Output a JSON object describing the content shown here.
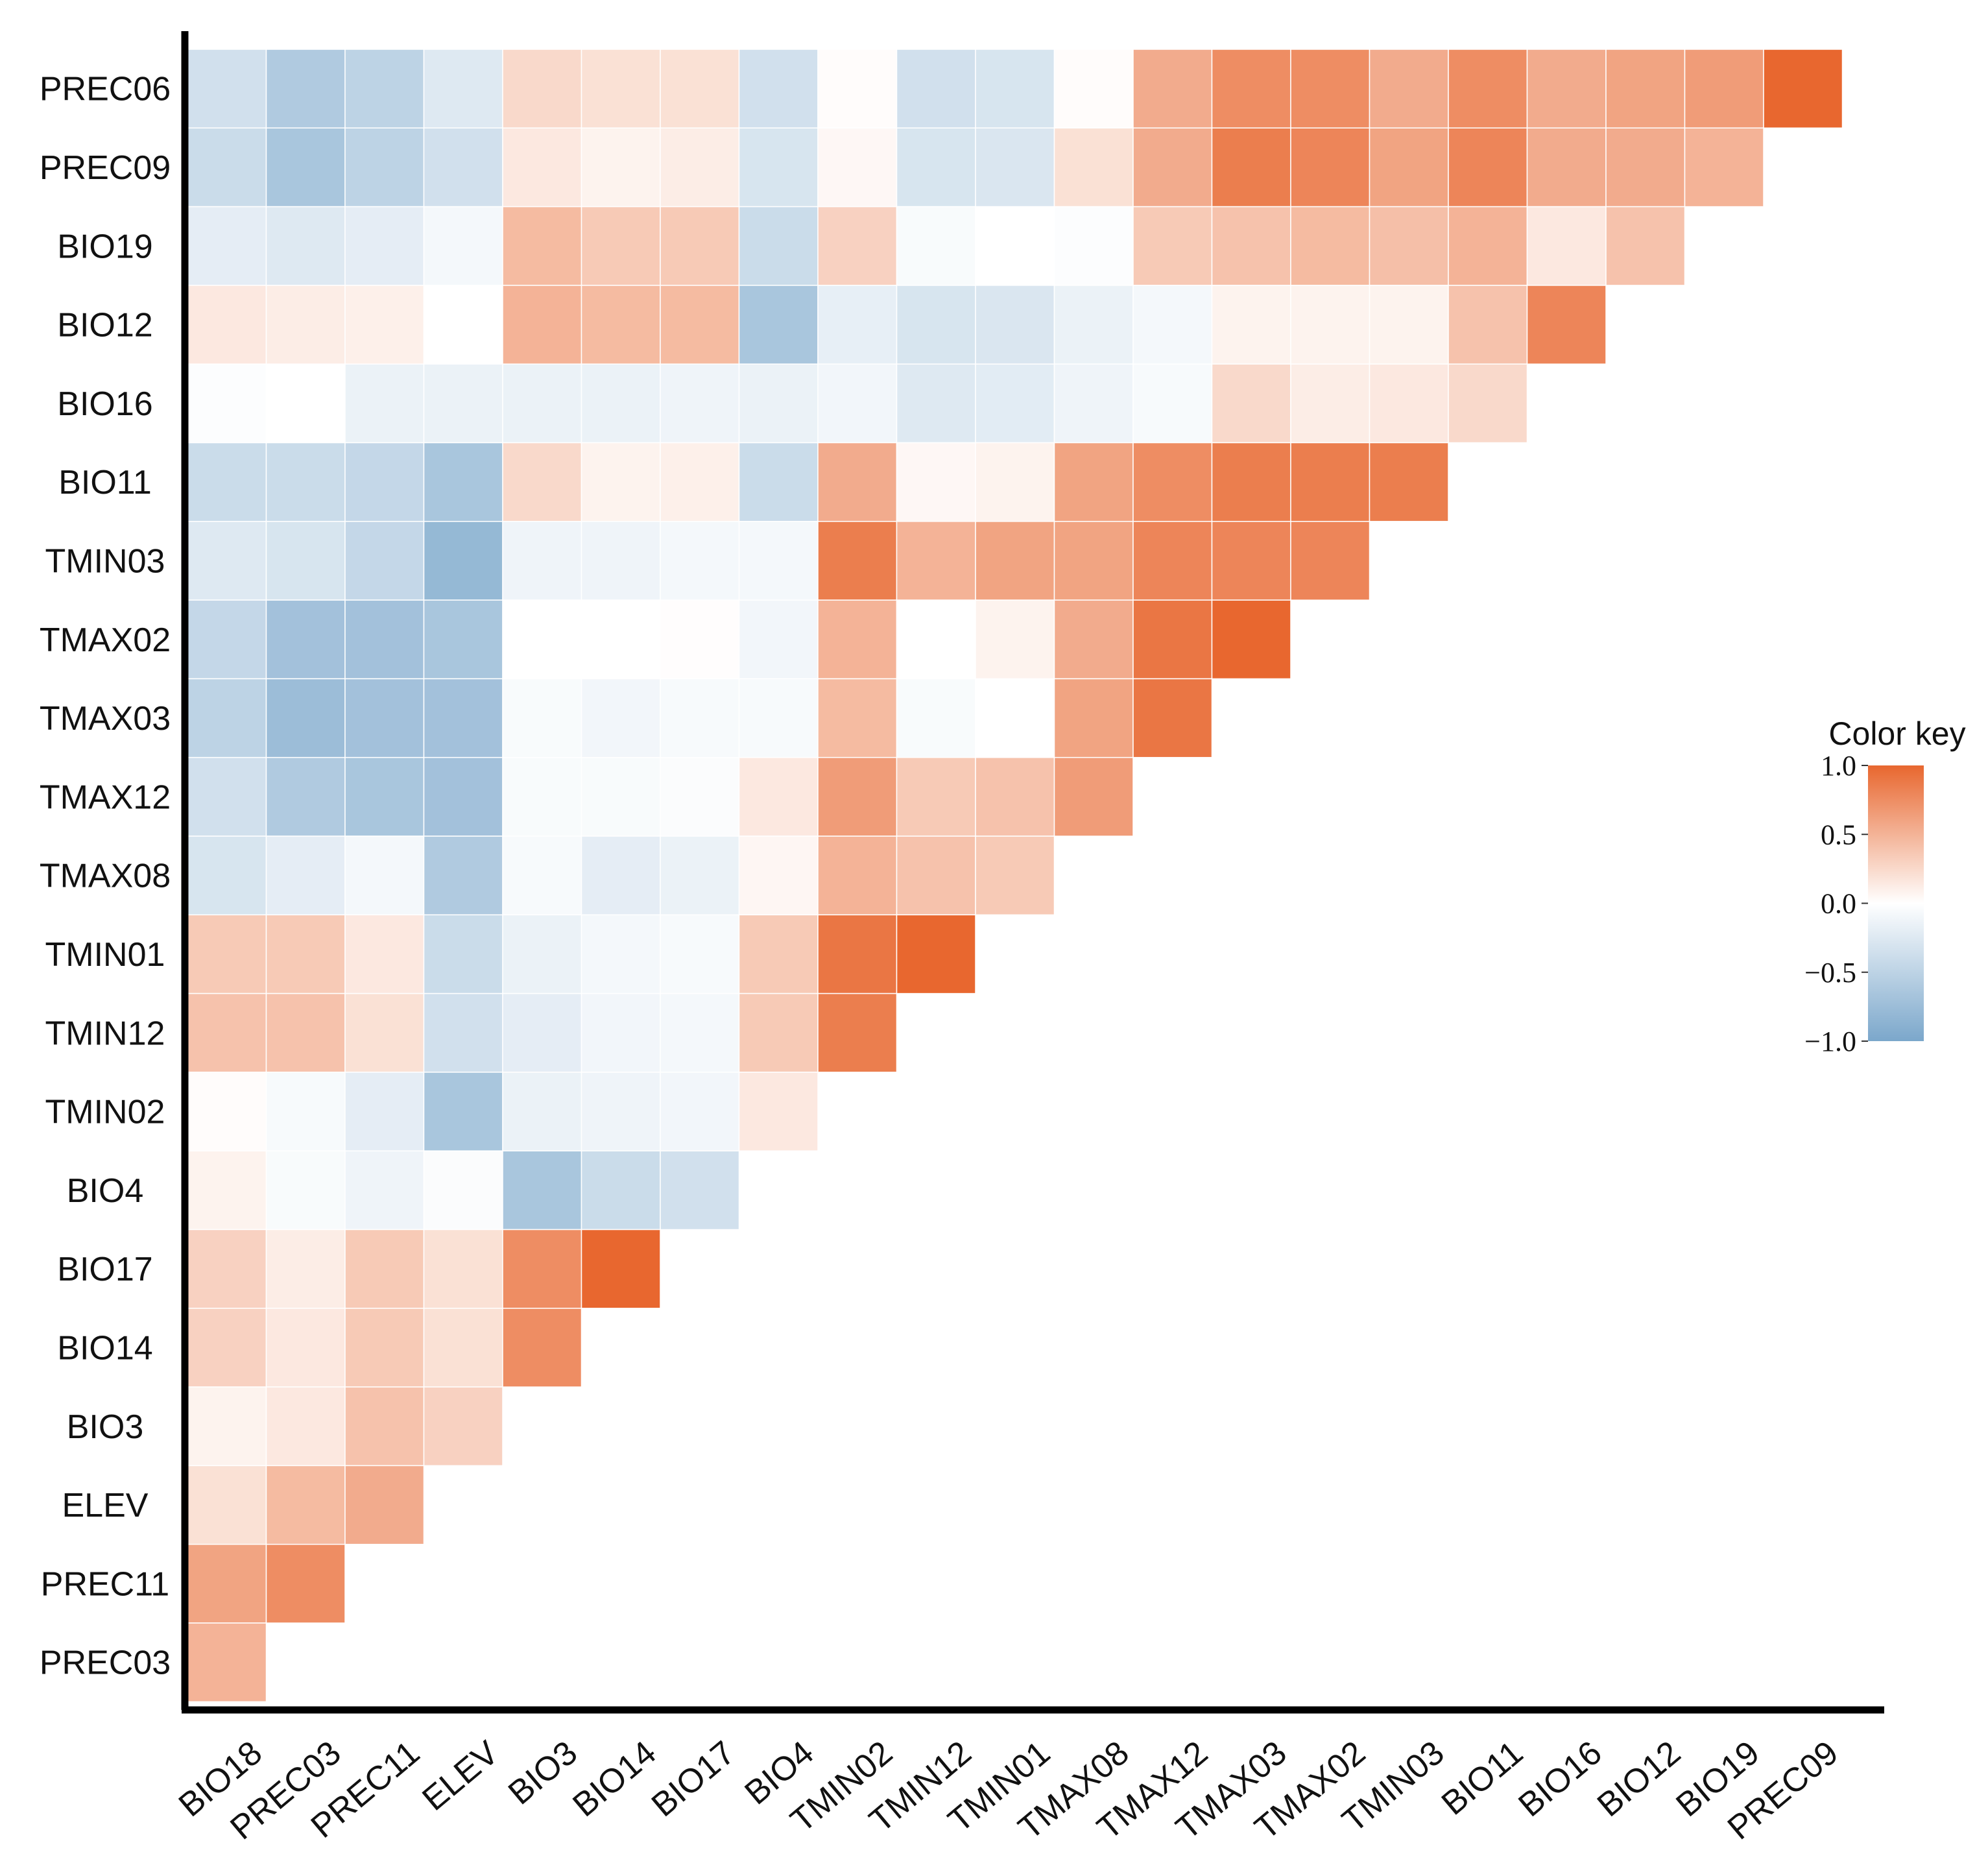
{
  "chart_data": {
    "type": "heatmap",
    "title": "",
    "xlabel": "",
    "ylabel": "",
    "row_labels": [
      "PREC06",
      "PREC09",
      "BIO19",
      "BIO12",
      "BIO16",
      "BIO11",
      "TMIN03",
      "TMAX02",
      "TMAX03",
      "TMAX12",
      "TMAX08",
      "TMIN01",
      "TMIN12",
      "TMIN02",
      "BIO4",
      "BIO17",
      "BIO14",
      "BIO3",
      "ELEV",
      "PREC11",
      "PREC03"
    ],
    "col_labels": [
      "BIO18",
      "PREC03",
      "PREC11",
      "ELEV",
      "BIO3",
      "BIO14",
      "BIO17",
      "BIO4",
      "TMIN02",
      "TMIN12",
      "TMIN01",
      "TMAX08",
      "TMAX12",
      "TMAX03",
      "TMAX02",
      "TMIN03",
      "BIO11",
      "BIO16",
      "BIO12",
      "BIO19",
      "PREC09"
    ],
    "values": [
      [
        -0.35,
        -0.6,
        -0.5,
        -0.25,
        0.25,
        0.2,
        0.2,
        -0.35,
        0.02,
        -0.35,
        -0.3,
        0.02,
        0.55,
        0.75,
        0.75,
        0.55,
        0.75,
        0.55,
        0.6,
        0.65,
        1.0
      ],
      [
        -0.4,
        -0.65,
        -0.5,
        -0.35,
        0.15,
        0.08,
        0.12,
        -0.3,
        0.05,
        -0.3,
        -0.28,
        0.2,
        0.55,
        0.85,
        0.8,
        0.6,
        0.8,
        0.55,
        0.55,
        0.5
      ],
      [
        -0.2,
        -0.25,
        -0.2,
        -0.08,
        0.45,
        0.35,
        0.35,
        -0.4,
        0.3,
        -0.05,
        0.0,
        -0.02,
        0.35,
        0.4,
        0.45,
        0.42,
        0.5,
        0.15,
        0.4
      ],
      [
        0.15,
        0.12,
        0.1,
        0.0,
        0.5,
        0.45,
        0.45,
        -0.65,
        -0.18,
        -0.3,
        -0.28,
        -0.15,
        -0.08,
        0.08,
        0.08,
        0.08,
        0.4,
        0.8
      ],
      [
        -0.02,
        0.0,
        -0.15,
        -0.15,
        -0.15,
        -0.15,
        -0.12,
        -0.15,
        -0.1,
        -0.25,
        -0.22,
        -0.12,
        -0.06,
        0.25,
        0.12,
        0.15,
        0.25
      ],
      [
        -0.4,
        -0.4,
        -0.45,
        -0.65,
        0.25,
        0.08,
        0.1,
        -0.4,
        0.55,
        0.05,
        0.08,
        0.6,
        0.75,
        0.85,
        0.85,
        0.85
      ],
      [
        -0.25,
        -0.3,
        -0.45,
        -0.8,
        -0.12,
        -0.12,
        -0.08,
        -0.08,
        0.85,
        0.5,
        0.6,
        0.6,
        0.8,
        0.8,
        0.8
      ],
      [
        -0.45,
        -0.7,
        -0.7,
        -0.65,
        0.0,
        0.0,
        0.01,
        -0.1,
        0.5,
        0.0,
        0.08,
        0.55,
        0.9,
        1.0
      ],
      [
        -0.5,
        -0.75,
        -0.7,
        -0.7,
        -0.05,
        -0.1,
        -0.06,
        -0.06,
        0.45,
        -0.05,
        0.0,
        0.6,
        0.9
      ],
      [
        -0.35,
        -0.6,
        -0.65,
        -0.7,
        -0.05,
        -0.05,
        -0.03,
        0.15,
        0.65,
        0.35,
        0.4,
        0.65
      ],
      [
        -0.3,
        -0.2,
        -0.08,
        -0.6,
        -0.06,
        -0.2,
        -0.15,
        0.06,
        0.5,
        0.4,
        0.35
      ],
      [
        0.35,
        0.35,
        0.15,
        -0.4,
        -0.15,
        -0.08,
        -0.06,
        0.35,
        0.9,
        1.0
      ],
      [
        0.4,
        0.4,
        0.2,
        -0.35,
        -0.2,
        -0.1,
        -0.08,
        0.35,
        0.85
      ],
      [
        0.02,
        -0.06,
        -0.2,
        -0.65,
        -0.15,
        -0.12,
        -0.1,
        0.15
      ],
      [
        0.08,
        -0.05,
        -0.12,
        -0.03,
        -0.65,
        -0.4,
        -0.35
      ],
      [
        0.3,
        0.12,
        0.35,
        0.2,
        0.75,
        1.0
      ],
      [
        0.3,
        0.15,
        0.35,
        0.2,
        0.75
      ],
      [
        0.08,
        0.15,
        0.4,
        0.3
      ],
      [
        0.2,
        0.45,
        0.55
      ],
      [
        0.6,
        0.75
      ],
      [
        0.5
      ]
    ],
    "color_key": {
      "title": "Color key",
      "ticks": [
        "1.0",
        "0.5",
        "0.0",
        "−0.5",
        "−1.0"
      ],
      "range": [
        -1.0,
        1.0
      ],
      "colors": {
        "negative": "#7ba7cb",
        "zero": "#ffffff",
        "positive": "#e8672f"
      }
    }
  }
}
